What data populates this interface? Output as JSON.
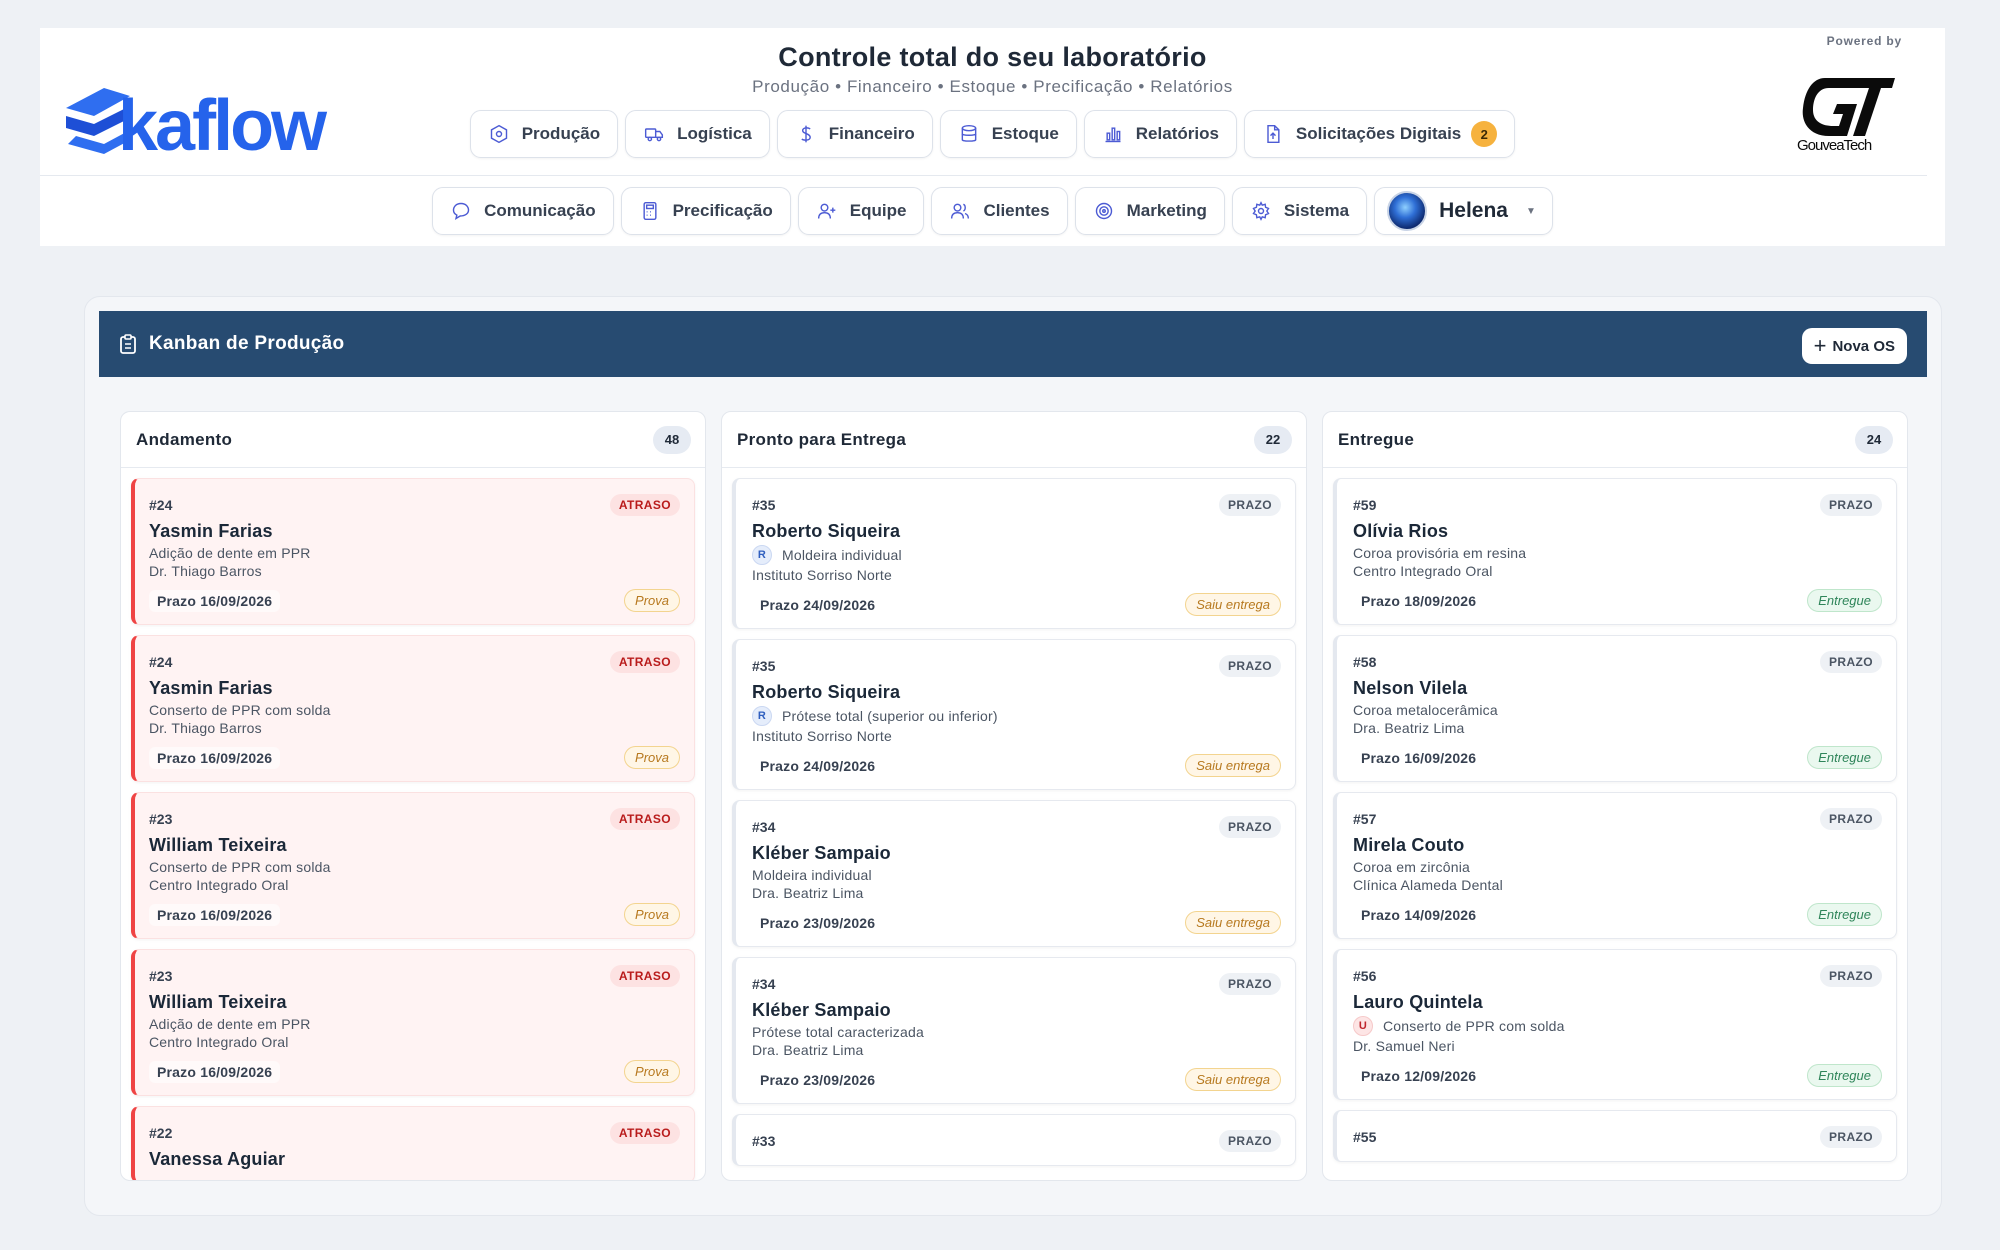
{
  "header": {
    "logo_text": "Skaflow",
    "title": "Controle total do seu laboratório",
    "subtitle": "Produção • Financeiro • Estoque • Precificação • Relatórios",
    "powered_by": "Powered by",
    "partner_logo": "GouveaTech"
  },
  "nav_row1": [
    {
      "label": "Produção",
      "icon": "hexagon-gear-icon"
    },
    {
      "label": "Logística",
      "icon": "truck-icon"
    },
    {
      "label": "Financeiro",
      "icon": "dollar-icon"
    },
    {
      "label": "Estoque",
      "icon": "database-icon"
    },
    {
      "label": "Relatórios",
      "icon": "bar-chart-icon"
    },
    {
      "label": "Solicitações Digitais",
      "icon": "file-upload-icon",
      "badge": "2"
    }
  ],
  "nav_row2": [
    {
      "label": "Comunicação",
      "icon": "chat-bubble-icon"
    },
    {
      "label": "Precificação",
      "icon": "calculator-icon"
    },
    {
      "label": "Equipe",
      "icon": "user-plus-icon"
    },
    {
      "label": "Clientes",
      "icon": "users-icon"
    },
    {
      "label": "Marketing",
      "icon": "target-icon"
    },
    {
      "label": "Sistema",
      "icon": "gear-icon"
    }
  ],
  "user": {
    "name": "Helena"
  },
  "board": {
    "title": "Kanban de Produção",
    "new_button": "Nova OS",
    "columns": [
      {
        "title": "Andamento",
        "count": "48",
        "cards": [
          {
            "num": "#24",
            "tag": "ATRASO",
            "name": "Yasmin Farias",
            "service": "Adição de dente em PPR",
            "client": "Dr. Thiago Barros",
            "due": "Prazo 16/09/2026",
            "status": "Prova"
          },
          {
            "num": "#24",
            "tag": "ATRASO",
            "name": "Yasmin Farias",
            "service": "Conserto de PPR com solda",
            "client": "Dr. Thiago Barros",
            "due": "Prazo 16/09/2026",
            "status": "Prova"
          },
          {
            "num": "#23",
            "tag": "ATRASO",
            "name": "William Teixeira",
            "service": "Conserto de PPR com solda",
            "client": "Centro Integrado Oral",
            "due": "Prazo 16/09/2026",
            "status": "Prova"
          },
          {
            "num": "#23",
            "tag": "ATRASO",
            "name": "William Teixeira",
            "service": "Adição de dente em PPR",
            "client": "Centro Integrado Oral",
            "due": "Prazo 16/09/2026",
            "status": "Prova"
          },
          {
            "num": "#22",
            "tag": "ATRASO",
            "name": "Vanessa Aguiar",
            "service": "",
            "client": "",
            "due": "",
            "status": ""
          }
        ]
      },
      {
        "title": "Pronto para Entrega",
        "count": "22",
        "cards": [
          {
            "num": "#35",
            "tag": "PRAZO",
            "name": "Roberto Siqueira",
            "letter": "R",
            "service": "Moldeira individual",
            "client": "Instituto Sorriso Norte",
            "due": "Prazo 24/09/2026",
            "status": "Saiu entrega"
          },
          {
            "num": "#35",
            "tag": "PRAZO",
            "name": "Roberto Siqueira",
            "letter": "R",
            "service": "Prótese total (superior ou inferior)",
            "client": "Instituto Sorriso Norte",
            "due": "Prazo 24/09/2026",
            "status": "Saiu entrega"
          },
          {
            "num": "#34",
            "tag": "PRAZO",
            "name": "Kléber Sampaio",
            "service": "Moldeira individual",
            "client": "Dra. Beatriz Lima",
            "due": "Prazo 23/09/2026",
            "status": "Saiu entrega"
          },
          {
            "num": "#34",
            "tag": "PRAZO",
            "name": "Kléber Sampaio",
            "service": "Prótese total caracterizada",
            "client": "Dra. Beatriz Lima",
            "due": "Prazo 23/09/2026",
            "status": "Saiu entrega"
          },
          {
            "num": "#33",
            "tag": "PRAZO",
            "name": "",
            "service": "",
            "client": "",
            "due": "",
            "status": ""
          }
        ]
      },
      {
        "title": "Entregue",
        "count": "24",
        "cards": [
          {
            "num": "#59",
            "tag": "PRAZO",
            "name": "Olívia Rios",
            "service": "Coroa provisória em resina",
            "client": "Centro Integrado Oral",
            "due": "Prazo 18/09/2026",
            "status": "Entregue"
          },
          {
            "num": "#58",
            "tag": "PRAZO",
            "name": "Nelson Vilela",
            "service": "Coroa metalocerâmica",
            "client": "Dra. Beatriz Lima",
            "due": "Prazo 16/09/2026",
            "status": "Entregue"
          },
          {
            "num": "#57",
            "tag": "PRAZO",
            "name": "Mirela Couto",
            "service": "Coroa em zircônia",
            "client": "Clínica Alameda Dental",
            "due": "Prazo 14/09/2026",
            "status": "Entregue"
          },
          {
            "num": "#56",
            "tag": "PRAZO",
            "name": "Lauro Quintela",
            "letter": "U",
            "service": "Conserto de PPR com solda",
            "client": "Dr. Samuel Neri",
            "due": "Prazo 12/09/2026",
            "status": "Entregue"
          },
          {
            "num": "#55",
            "tag": "PRAZO",
            "name": "",
            "service": "",
            "client": "",
            "due": "",
            "status": ""
          }
        ]
      }
    ]
  },
  "colors": {
    "accent": "#274b71",
    "late": "#ef4444",
    "brand_blue": "#2563eb",
    "badge": "#f6b23e"
  }
}
